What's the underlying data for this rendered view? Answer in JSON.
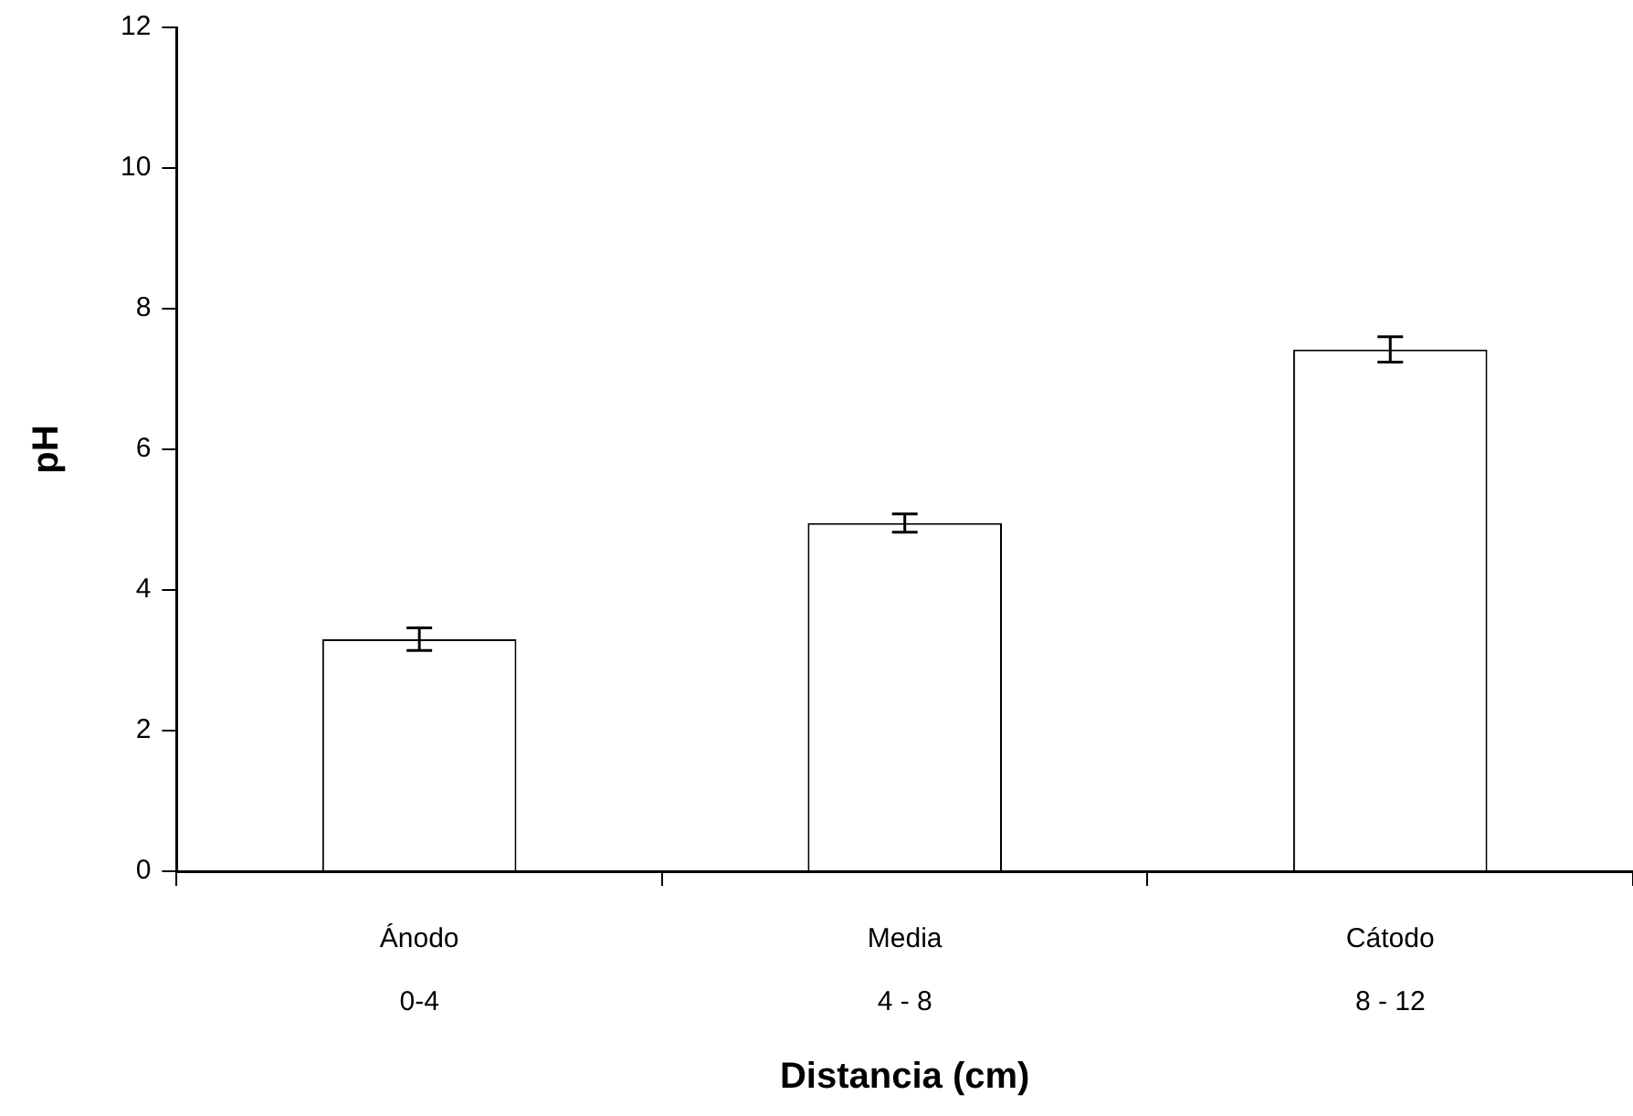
{
  "chart_data": {
    "type": "bar",
    "xlabel": "Distancia (cm)",
    "ylabel": "pH",
    "categories": [
      "Ánodo\n0-4",
      "Media\n4 - 8",
      "Cátodo\n8 - 12"
    ],
    "values": [
      3.3,
      4.95,
      7.42
    ],
    "errors": [
      0.16,
      0.13,
      0.18
    ],
    "color": "#ffffff",
    "ylim": [
      0,
      12
    ],
    "yticks": [
      0,
      2,
      4,
      6,
      8,
      10,
      12
    ],
    "grid": false,
    "legend": false
  }
}
